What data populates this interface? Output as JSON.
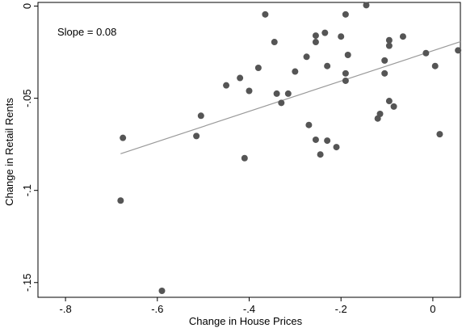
{
  "chart_data": {
    "type": "scatter",
    "xlabel": "Change in House Prices",
    "ylabel": "Change in Retail Rents",
    "annotation": "Slope = 0.08",
    "xlim": [
      -0.86,
      0.06
    ],
    "ylim": [
      -0.158,
      0.002
    ],
    "xticks": [
      {
        "value": -0.8,
        "label": "-.8"
      },
      {
        "value": -0.6,
        "label": "-.6"
      },
      {
        "value": -0.4,
        "label": "-.4"
      },
      {
        "value": -0.2,
        "label": "-.2"
      },
      {
        "value": 0,
        "label": "0"
      }
    ],
    "yticks": [
      {
        "value": 0,
        "label": "0"
      },
      {
        "value": -0.05,
        "label": "-.05"
      },
      {
        "value": -0.1,
        "label": "-.1"
      },
      {
        "value": -0.15,
        "label": "-.15"
      }
    ],
    "fit_line": {
      "x": [
        -0.68,
        0.06
      ],
      "y": [
        -0.0801,
        -0.0193
      ]
    },
    "colors": {
      "points": "#555555",
      "fit_line": "#999999",
      "axis": "#000000"
    },
    "points": [
      {
        "x": -0.145,
        "y": 0.0005
      },
      {
        "x": -0.365,
        "y": -0.0045
      },
      {
        "x": -0.19,
        "y": -0.0045
      },
      {
        "x": -0.345,
        "y": -0.0195
      },
      {
        "x": -0.255,
        "y": -0.016
      },
      {
        "x": -0.235,
        "y": -0.0145
      },
      {
        "x": -0.2,
        "y": -0.0165
      },
      {
        "x": -0.065,
        "y": -0.0165
      },
      {
        "x": -0.255,
        "y": -0.0195
      },
      {
        "x": -0.095,
        "y": -0.0185
      },
      {
        "x": -0.095,
        "y": -0.0215
      },
      {
        "x": 0.055,
        "y": -0.024
      },
      {
        "x": -0.015,
        "y": -0.0255
      },
      {
        "x": -0.275,
        "y": -0.0275
      },
      {
        "x": -0.185,
        "y": -0.0265
      },
      {
        "x": -0.105,
        "y": -0.0295
      },
      {
        "x": -0.38,
        "y": -0.0335
      },
      {
        "x": -0.23,
        "y": -0.0325
      },
      {
        "x": -0.3,
        "y": -0.0355
      },
      {
        "x": -0.19,
        "y": -0.0365
      },
      {
        "x": -0.105,
        "y": -0.0365
      },
      {
        "x": 0.005,
        "y": -0.0325
      },
      {
        "x": -0.42,
        "y": -0.039
      },
      {
        "x": -0.19,
        "y": -0.0405
      },
      {
        "x": -0.45,
        "y": -0.043
      },
      {
        "x": -0.4,
        "y": -0.046
      },
      {
        "x": -0.34,
        "y": -0.0475
      },
      {
        "x": -0.315,
        "y": -0.0475
      },
      {
        "x": -0.33,
        "y": -0.0525
      },
      {
        "x": -0.095,
        "y": -0.0515
      },
      {
        "x": -0.085,
        "y": -0.0545
      },
      {
        "x": -0.505,
        "y": -0.0595
      },
      {
        "x": -0.115,
        "y": -0.0585
      },
      {
        "x": -0.12,
        "y": -0.061
      },
      {
        "x": -0.27,
        "y": -0.0645
      },
      {
        "x": -0.515,
        "y": -0.0705
      },
      {
        "x": 0.015,
        "y": -0.0695
      },
      {
        "x": -0.675,
        "y": -0.0715
      },
      {
        "x": -0.255,
        "y": -0.0725
      },
      {
        "x": -0.23,
        "y": -0.073
      },
      {
        "x": -0.21,
        "y": -0.0765
      },
      {
        "x": -0.245,
        "y": -0.0805
      },
      {
        "x": -0.41,
        "y": -0.0825
      },
      {
        "x": -0.68,
        "y": -0.1055
      },
      {
        "x": -0.59,
        "y": -0.1545
      }
    ]
  }
}
